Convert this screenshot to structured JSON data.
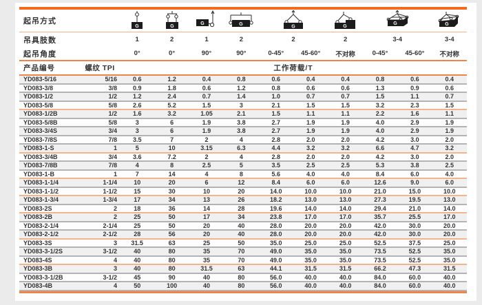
{
  "colors": {
    "accent": "#f26b21",
    "accent_mid": "#ef8448",
    "accent_light": "#f3b48c",
    "row_alt": "#f0f0f0",
    "row_separator": "#b3b3b3",
    "text": "#333333"
  },
  "header": {
    "method_label": "起吊方式",
    "legs_label": "吊具肢数",
    "angle_label": "起吊角度",
    "product_label": "产品编号",
    "thread_label": "螺纹 TPI",
    "load_label": "工作荷载/T",
    "g_label": "G",
    "methods": [
      {
        "icon": "sling-single-vertical-icon",
        "legs": "1",
        "span": 1
      },
      {
        "icon": "sling-double-vertical-icon",
        "legs": "2",
        "span": 1
      },
      {
        "icon": "sling-single-90deg-icon",
        "legs": "1",
        "span": 1
      },
      {
        "icon": "sling-double-90deg-icon",
        "legs": "2",
        "span": 1
      },
      {
        "icon": "sling-two-leg-angle-icon",
        "legs": "2",
        "span": 2
      },
      {
        "icon": "sling-two-leg-asymmetric-icon",
        "legs": "2",
        "span": 1
      },
      {
        "icon": "sling-multi-leg-angle-icon",
        "legs": "3-4",
        "span": 2
      },
      {
        "icon": "sling-multi-leg-asymmetric-icon",
        "legs": "3-4",
        "span": 1
      }
    ],
    "angles": [
      "0°",
      "0°",
      "90°",
      "90°",
      "0-45°",
      "45-60°",
      "不对称",
      "0-45°",
      "45-60°",
      "不对称"
    ]
  },
  "table": {
    "rows": [
      {
        "code": "YD083-5/16",
        "tpi": "5/16",
        "loads": [
          "0.6",
          "1.2",
          "0.4",
          "0.8",
          "0.6",
          "0.4",
          "0.4",
          "0.8",
          "0.6",
          "0.4"
        ],
        "group_end": false
      },
      {
        "code": "YD083-3/8",
        "tpi": "3/8",
        "loads": [
          "0.9",
          "1.8",
          "0.6",
          "1.2",
          "0.8",
          "0.6",
          "0.6",
          "1.3",
          "0.9",
          "0.6"
        ],
        "group_end": false
      },
      {
        "code": "YD083-1/2",
        "tpi": "1/2",
        "loads": [
          "1.2",
          "2.4",
          "0.7",
          "1.4",
          "1.0",
          "0.7",
          "0.7",
          "1.5",
          "1.1",
          "0.7"
        ],
        "group_end": false
      },
      {
        "code": "YD083-5/8",
        "tpi": "5/8",
        "loads": [
          "2.6",
          "5.2",
          "1.5",
          "3",
          "2.1",
          "1.5",
          "1.5",
          "3.2",
          "2.3",
          "1.5"
        ],
        "group_end": true
      },
      {
        "code": "YD083-1/2B",
        "tpi": "1/2",
        "loads": [
          "1.6",
          "3.2",
          "1.05",
          "2.1",
          "1.5",
          "1.1",
          "1.1",
          "2.2",
          "1.6",
          "1.1"
        ],
        "group_end": false
      },
      {
        "code": "YD083-5/8B",
        "tpi": "5/8",
        "loads": [
          "3",
          "6",
          "1.9",
          "3.8",
          "2.7",
          "1.9",
          "1.9",
          "4.0",
          "2.9",
          "1.9"
        ],
        "group_end": false
      },
      {
        "code": "YD083-3/4S",
        "tpi": "3/4",
        "loads": [
          "3",
          "6",
          "1.9",
          "3.8",
          "2.7",
          "1.9",
          "1.9",
          "4.0",
          "2.9",
          "1.9"
        ],
        "group_end": false
      },
      {
        "code": "YD083-7/8S",
        "tpi": "7/8",
        "loads": [
          "3.5",
          "7",
          "2",
          "4",
          "2.8",
          "2.0",
          "2.0",
          "4.2",
          "3.0",
          "2.0"
        ],
        "group_end": false
      },
      {
        "code": "YD083-1-S",
        "tpi": "1",
        "loads": [
          "5",
          "10",
          "3.15",
          "6.3",
          "4.4",
          "3.2",
          "3.2",
          "6.6",
          "4.7",
          "3.2"
        ],
        "group_end": true
      },
      {
        "code": "YD083-3/4B",
        "tpi": "3/4",
        "loads": [
          "3.6",
          "7.2",
          "2",
          "4",
          "2.8",
          "2.0",
          "2.0",
          "4.2",
          "3.0",
          "2.0"
        ],
        "group_end": false
      },
      {
        "code": "YD083-7/8B",
        "tpi": "7/8",
        "loads": [
          "4",
          "8",
          "2.5",
          "5",
          "3.5",
          "2.5",
          "2.5",
          "5.3",
          "3.8",
          "2.5"
        ],
        "group_end": false
      },
      {
        "code": "YD083-1-B",
        "tpi": "1",
        "loads": [
          "7",
          "14",
          "4",
          "8",
          "5.6",
          "4.0",
          "4.0",
          "8.4",
          "6.0",
          "4.0"
        ],
        "group_end": true
      },
      {
        "code": "YD083-1-1/4",
        "tpi": "1-1/4",
        "loads": [
          "10",
          "20",
          "6",
          "12",
          "8.4",
          "6.0",
          "6.0",
          "12.6",
          "9.0",
          "6.0"
        ],
        "group_end": false
      },
      {
        "code": "YD083-1-1/2",
        "tpi": "1-1/2",
        "loads": [
          "15",
          "30",
          "10",
          "20",
          "14.0",
          "10.0",
          "10.0",
          "21.0",
          "15.0",
          "10.0"
        ],
        "group_end": true
      },
      {
        "code": "YD083-1-3/4",
        "tpi": "1-3/4",
        "loads": [
          "17",
          "34",
          "13",
          "26",
          "18.2",
          "13.0",
          "13.0",
          "27.3",
          "19.5",
          "13.0"
        ],
        "group_end": false
      },
      {
        "code": "YD083-2S",
        "tpi": "2",
        "loads": [
          "18",
          "36",
          "14",
          "28",
          "19.6",
          "14.0",
          "14.0",
          "29.4",
          "21.0",
          "14.0"
        ],
        "group_end": true
      },
      {
        "code": "YD083-2B",
        "tpi": "2",
        "loads": [
          "25",
          "50",
          "17",
          "34",
          "23.8",
          "17.0",
          "17.0",
          "35.7",
          "25.5",
          "17.0"
        ],
        "group_end": false
      },
      {
        "code": "YD083-2-1/4",
        "tpi": "2-1/4",
        "loads": [
          "25",
          "50",
          "20",
          "40",
          "28.0",
          "20.0",
          "20.0",
          "42.0",
          "30.0",
          "20.0"
        ],
        "group_end": false
      },
      {
        "code": "YD083-2-1/2",
        "tpi": "2-1/2",
        "loads": [
          "28",
          "56",
          "20",
          "40",
          "28.0",
          "20.0",
          "20.0",
          "42.0",
          "30.0",
          "20.0"
        ],
        "group_end": true
      },
      {
        "code": "YD083-3S",
        "tpi": "3",
        "loads": [
          "31.5",
          "63",
          "25",
          "50",
          "35.0",
          "25.0",
          "25.0",
          "52.5",
          "37.5",
          "25.0"
        ],
        "group_end": false
      },
      {
        "code": "YD083-3-1/2S",
        "tpi": "3-1/2",
        "loads": [
          "40",
          "80",
          "35",
          "70",
          "49.0",
          "35.0",
          "35.0",
          "73.5",
          "52.5",
          "35.0"
        ],
        "group_end": false
      },
      {
        "code": "YD083-4S",
        "tpi": "4",
        "loads": [
          "40",
          "80",
          "35",
          "70",
          "49.0",
          "35.0",
          "35.0",
          "73.5",
          "52.5",
          "35.0"
        ],
        "group_end": true
      },
      {
        "code": "YD083-3B",
        "tpi": "3",
        "loads": [
          "40",
          "80",
          "31.5",
          "63",
          "44.1",
          "31.5",
          "31.5",
          "66.2",
          "47.3",
          "31.5"
        ],
        "group_end": false
      },
      {
        "code": "YD083-3-1/2B",
        "tpi": "3-1/2",
        "loads": [
          "45",
          "90",
          "40",
          "80",
          "56.0",
          "40.0",
          "40.0",
          "84.0",
          "60.0",
          "40.0"
        ],
        "group_end": false
      },
      {
        "code": "YD083-4B",
        "tpi": "4",
        "loads": [
          "50",
          "100",
          "40",
          "80",
          "56.0",
          "40.0",
          "40.0",
          "84.0",
          "60.0",
          "40.0"
        ],
        "group_end": false
      }
    ]
  }
}
